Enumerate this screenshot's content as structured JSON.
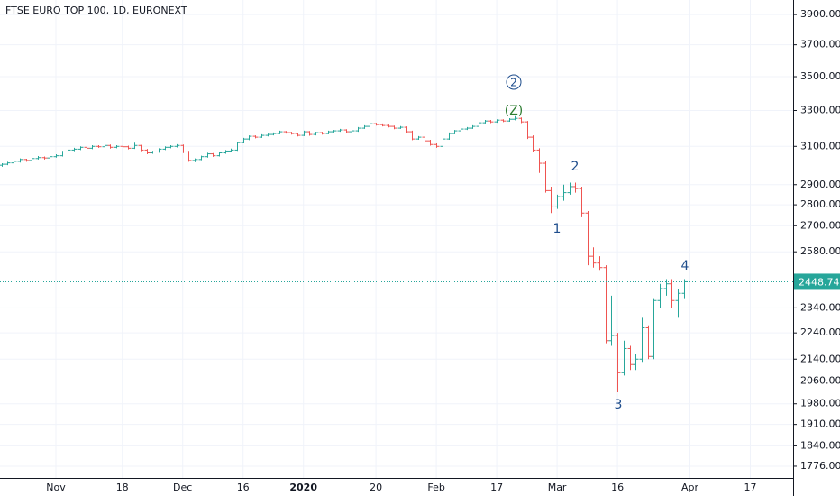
{
  "chart_data": {
    "type": "ohlc",
    "title": "FTSE EURO TOP 100, 1D, EURONEXT",
    "log_scale": true,
    "grid": true,
    "up_color": "#26a69a",
    "down_color": "#ef5350",
    "ylim": [
      1740,
      4000
    ],
    "yticks": [
      {
        "value": 3900,
        "label": "3900.00"
      },
      {
        "value": 3700,
        "label": "3700.00"
      },
      {
        "value": 3500,
        "label": "3500.00"
      },
      {
        "value": 3300,
        "label": "3300.00"
      },
      {
        "value": 3100,
        "label": "3100.00"
      },
      {
        "value": 2900,
        "label": "2900.00"
      },
      {
        "value": 2800,
        "label": "2800.00"
      },
      {
        "value": 2700,
        "label": "2700.00"
      },
      {
        "value": 2580,
        "label": "2580.00"
      },
      {
        "value": 2340,
        "label": "2340.00"
      },
      {
        "value": 2240,
        "label": "2240.00"
      },
      {
        "value": 2140,
        "label": "2140.00"
      },
      {
        "value": 2060,
        "label": "2060.00"
      },
      {
        "value": 1980,
        "label": "1980.00"
      },
      {
        "value": 1910,
        "label": "1910.00"
      },
      {
        "value": 1840,
        "label": "1840.00"
      },
      {
        "value": 1776,
        "label": "1776.00"
      }
    ],
    "categories": [
      null,
      null,
      null,
      null,
      null,
      null,
      null,
      null,
      null,
      "Nov",
      null,
      null,
      null,
      null,
      null,
      null,
      null,
      null,
      null,
      null,
      "18",
      null,
      null,
      null,
      null,
      null,
      null,
      null,
      null,
      null,
      "Dec",
      null,
      null,
      null,
      null,
      null,
      null,
      null,
      null,
      null,
      "16",
      null,
      null,
      null,
      null,
      null,
      null,
      null,
      null,
      null,
      "2020",
      null,
      null,
      null,
      null,
      null,
      null,
      null,
      null,
      null,
      null,
      null,
      "20",
      null,
      null,
      null,
      null,
      null,
      null,
      null,
      null,
      null,
      "Feb",
      null,
      null,
      null,
      null,
      null,
      null,
      null,
      null,
      null,
      "17",
      null,
      null,
      null,
      null,
      null,
      null,
      null,
      null,
      null,
      "Mar",
      null,
      null,
      null,
      null,
      null,
      null,
      null,
      null,
      null,
      "16",
      null,
      null,
      null,
      null,
      null,
      null,
      null,
      null,
      null,
      null,
      null,
      "Apr",
      null,
      null,
      null,
      null,
      null,
      null,
      null,
      null,
      null,
      "17",
      null,
      null,
      null,
      null,
      null,
      null
    ],
    "ohlc": [
      [
        3000,
        3010,
        2992,
        3005
      ],
      [
        3005,
        3018,
        3000,
        3012
      ],
      [
        3012,
        3026,
        3006,
        3020
      ],
      [
        3020,
        3036,
        3014,
        3030
      ],
      [
        3030,
        3034,
        3018,
        3025
      ],
      [
        3025,
        3042,
        3020,
        3035
      ],
      [
        3035,
        3048,
        3030,
        3040
      ],
      [
        3040,
        3046,
        3030,
        3038
      ],
      [
        3038,
        3052,
        3032,
        3045
      ],
      [
        3045,
        3058,
        3040,
        3050
      ],
      [
        3050,
        3076,
        3046,
        3070
      ],
      [
        3070,
        3086,
        3064,
        3080
      ],
      [
        3080,
        3092,
        3074,
        3085
      ],
      [
        3085,
        3100,
        3080,
        3095
      ],
      [
        3095,
        3100,
        3084,
        3090
      ],
      [
        3090,
        3106,
        3085,
        3100
      ],
      [
        3100,
        3106,
        3092,
        3098
      ],
      [
        3098,
        3112,
        3094,
        3105
      ],
      [
        3105,
        3110,
        3088,
        3095
      ],
      [
        3095,
        3106,
        3090,
        3100
      ],
      [
        3100,
        3110,
        3092,
        3098
      ],
      [
        3098,
        3104,
        3084,
        3090
      ],
      [
        3090,
        3120,
        3086,
        3105
      ],
      [
        3105,
        3108,
        3074,
        3080
      ],
      [
        3080,
        3086,
        3058,
        3065
      ],
      [
        3065,
        3076,
        3060,
        3070
      ],
      [
        3070,
        3090,
        3066,
        3085
      ],
      [
        3085,
        3100,
        3080,
        3095
      ],
      [
        3095,
        3106,
        3090,
        3100
      ],
      [
        3100,
        3112,
        3094,
        3105
      ],
      [
        3105,
        3110,
        3064,
        3070
      ],
      [
        3070,
        3076,
        3018,
        3025
      ],
      [
        3025,
        3036,
        3016,
        3030
      ],
      [
        3030,
        3050,
        3026,
        3045
      ],
      [
        3045,
        3066,
        3040,
        3060
      ],
      [
        3060,
        3064,
        3044,
        3050
      ],
      [
        3050,
        3072,
        3046,
        3065
      ],
      [
        3065,
        3080,
        3060,
        3075
      ],
      [
        3075,
        3088,
        3070,
        3080
      ],
      [
        3080,
        3126,
        3076,
        3120
      ],
      [
        3120,
        3146,
        3116,
        3140
      ],
      [
        3140,
        3160,
        3134,
        3155
      ],
      [
        3155,
        3160,
        3144,
        3150
      ],
      [
        3150,
        3166,
        3146,
        3160
      ],
      [
        3160,
        3170,
        3154,
        3165
      ],
      [
        3165,
        3176,
        3160,
        3170
      ],
      [
        3170,
        3186,
        3166,
        3180
      ],
      [
        3180,
        3184,
        3170,
        3175
      ],
      [
        3175,
        3180,
        3164,
        3170
      ],
      [
        3170,
        3174,
        3154,
        3160
      ],
      [
        3160,
        3186,
        3156,
        3180
      ],
      [
        3180,
        3184,
        3158,
        3165
      ],
      [
        3165,
        3180,
        3160,
        3175
      ],
      [
        3175,
        3180,
        3164,
        3170
      ],
      [
        3170,
        3186,
        3166,
        3180
      ],
      [
        3180,
        3190,
        3176,
        3185
      ],
      [
        3185,
        3196,
        3180,
        3190
      ],
      [
        3190,
        3194,
        3174,
        3180
      ],
      [
        3180,
        3190,
        3176,
        3185
      ],
      [
        3185,
        3206,
        3180,
        3200
      ],
      [
        3200,
        3216,
        3196,
        3210
      ],
      [
        3210,
        3232,
        3206,
        3225
      ],
      [
        3225,
        3230,
        3214,
        3220
      ],
      [
        3220,
        3226,
        3210,
        3215
      ],
      [
        3215,
        3220,
        3204,
        3210
      ],
      [
        3210,
        3214,
        3194,
        3200
      ],
      [
        3200,
        3212,
        3196,
        3205
      ],
      [
        3205,
        3210,
        3174,
        3180
      ],
      [
        3180,
        3186,
        3134,
        3140
      ],
      [
        3140,
        3156,
        3136,
        3150
      ],
      [
        3150,
        3156,
        3124,
        3130
      ],
      [
        3130,
        3136,
        3104,
        3110
      ],
      [
        3110,
        3116,
        3092,
        3100
      ],
      [
        3100,
        3146,
        3096,
        3140
      ],
      [
        3140,
        3176,
        3136,
        3170
      ],
      [
        3170,
        3190,
        3166,
        3185
      ],
      [
        3185,
        3200,
        3180,
        3195
      ],
      [
        3195,
        3206,
        3190,
        3200
      ],
      [
        3200,
        3216,
        3196,
        3210
      ],
      [
        3210,
        3236,
        3206,
        3230
      ],
      [
        3230,
        3246,
        3226,
        3240
      ],
      [
        3240,
        3246,
        3228,
        3235
      ],
      [
        3235,
        3250,
        3230,
        3245
      ],
      [
        3245,
        3250,
        3234,
        3240
      ],
      [
        3240,
        3256,
        3236,
        3250
      ],
      [
        3250,
        3268,
        3244,
        3255
      ],
      [
        3255,
        3260,
        3228,
        3235
      ],
      [
        3235,
        3240,
        3140,
        3150
      ],
      [
        3150,
        3160,
        3070,
        3080
      ],
      [
        3080,
        3090,
        2960,
        3010
      ],
      [
        3010,
        3020,
        2860,
        2870
      ],
      [
        2870,
        2890,
        2760,
        2790
      ],
      [
        2790,
        2850,
        2780,
        2840
      ],
      [
        2840,
        2900,
        2820,
        2860
      ],
      [
        2860,
        2910,
        2850,
        2890
      ],
      [
        2890,
        2910,
        2860,
        2880
      ],
      [
        2880,
        2890,
        2740,
        2760
      ],
      [
        2760,
        2770,
        2520,
        2560
      ],
      [
        2560,
        2600,
        2510,
        2530
      ],
      [
        2530,
        2560,
        2500,
        2510
      ],
      [
        2510,
        2520,
        2200,
        2210
      ],
      [
        2210,
        2390,
        2190,
        2230
      ],
      [
        2230,
        2240,
        2020,
        2090
      ],
      [
        2090,
        2210,
        2080,
        2180
      ],
      [
        2180,
        2190,
        2100,
        2120
      ],
      [
        2120,
        2160,
        2100,
        2140
      ],
      [
        2140,
        2300,
        2130,
        2260
      ],
      [
        2260,
        2270,
        2140,
        2150
      ],
      [
        2150,
        2380,
        2140,
        2370
      ],
      [
        2370,
        2440,
        2340,
        2420
      ],
      [
        2420,
        2460,
        2390,
        2440
      ],
      [
        2440,
        2460,
        2340,
        2370
      ],
      [
        2370,
        2420,
        2300,
        2400
      ],
      [
        2400,
        2460,
        2380,
        2448.74
      ],
      null,
      null,
      null,
      null,
      null,
      null,
      null,
      null,
      null,
      null,
      null,
      null,
      null,
      null,
      null,
      null,
      null
    ],
    "annotations": [
      "2",
      "(Z)",
      "2",
      "1",
      "3",
      "4"
    ]
  }
}
